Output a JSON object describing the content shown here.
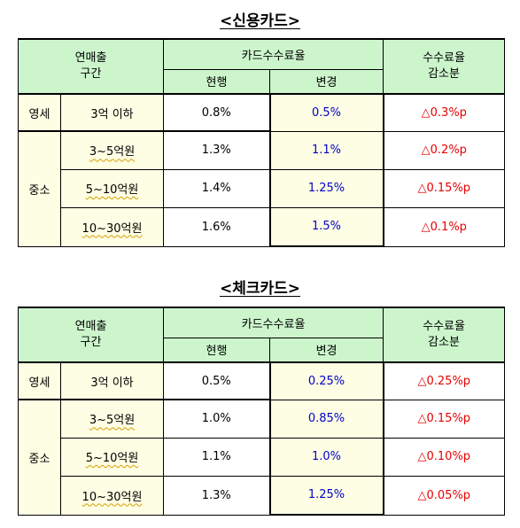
{
  "credit": {
    "title": "<신용카드>",
    "header": {
      "range_line1": "연매출",
      "range_line2": "구간",
      "group": "카드수수료율",
      "current": "현행",
      "changed": "변경",
      "reduction_line1": "수수료율",
      "reduction_line2": "감소분"
    },
    "rows": [
      {
        "group": "영세",
        "range": "3억 이하",
        "current": "0.8%",
        "changed": "0.5%",
        "reduction": "△0.3%p"
      },
      {
        "group": "중소",
        "range": "3~5억원",
        "current": "1.3%",
        "changed": "1.1%",
        "reduction": "△0.2%p"
      },
      {
        "group": "",
        "range": "5~10억원",
        "current": "1.4%",
        "changed": "1.25%",
        "reduction": "△0.15%p"
      },
      {
        "group": "",
        "range": "10~30억원",
        "current": "1.6%",
        "changed": "1.5%",
        "reduction": "△0.1%p"
      }
    ]
  },
  "check": {
    "title": "<체크카드>",
    "header": {
      "range_line1": "연매출",
      "range_line2": "구간",
      "group": "카드수수료율",
      "current": "현행",
      "changed": "변경",
      "reduction_line1": "수수료율",
      "reduction_line2": "감소분"
    },
    "rows": [
      {
        "group": "영세",
        "range": "3억 이하",
        "current": "0.5%",
        "changed": "0.25%",
        "reduction": "△0.25%p"
      },
      {
        "group": "중소",
        "range": "3~5억원",
        "current": "1.0%",
        "changed": "0.85%",
        "reduction": "△0.15%p"
      },
      {
        "group": "",
        "range": "5~10억원",
        "current": "1.1%",
        "changed": "1.0%",
        "reduction": "△0.10%p"
      },
      {
        "group": "",
        "range": "10~30억원",
        "current": "1.3%",
        "changed": "1.25%",
        "reduction": "△0.05%p"
      }
    ]
  },
  "colors": {
    "header_bg": "#ccf5cc",
    "highlight_bg": "#fefee4",
    "changed_text": "#0000cc",
    "reduction_text": "#e60000"
  }
}
